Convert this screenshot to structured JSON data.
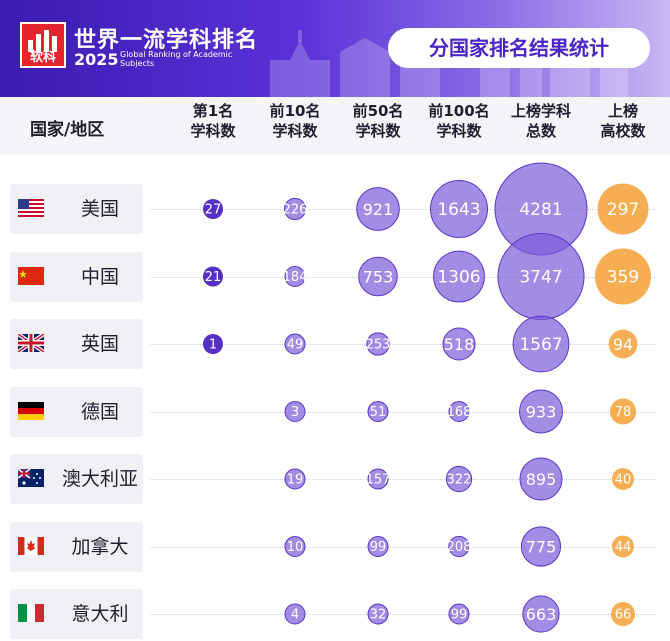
{
  "header": {
    "logo_text": "软科",
    "title": "世界一流学科排名",
    "year": "2025",
    "subtitle": "Global Ranking of Academic Subjects",
    "badge": "分国家排名结果统计"
  },
  "colors": {
    "header": "#4a24c6",
    "bubble": "#7b5cd9",
    "bubble_dark": "#5530c4",
    "university": "#f7ae52"
  },
  "chart_data": {
    "type": "table",
    "columns": [
      "国家/地区",
      "第1名\n学科数",
      "前10名\n学科数",
      "前50名\n学科数",
      "前100名\n学科数",
      "上榜学科\n总数",
      "上榜\n高校数"
    ],
    "rows": [
      {
        "country": "美国",
        "flag": "us",
        "values": [
          27,
          226,
          921,
          1643,
          4281,
          297
        ]
      },
      {
        "country": "中国",
        "flag": "cn",
        "values": [
          21,
          184,
          753,
          1306,
          3747,
          359
        ]
      },
      {
        "country": "英国",
        "flag": "gb",
        "values": [
          1,
          49,
          253,
          518,
          1567,
          94
        ]
      },
      {
        "country": "德国",
        "flag": "de",
        "values": [
          null,
          3,
          51,
          168,
          933,
          78
        ]
      },
      {
        "country": "澳大利亚",
        "flag": "au",
        "values": [
          null,
          19,
          157,
          322,
          895,
          40
        ]
      },
      {
        "country": "加拿大",
        "flag": "ca",
        "values": [
          null,
          10,
          99,
          208,
          775,
          44
        ]
      },
      {
        "country": "意大利",
        "flag": "it",
        "values": [
          null,
          4,
          32,
          99,
          663,
          66
        ]
      }
    ]
  }
}
